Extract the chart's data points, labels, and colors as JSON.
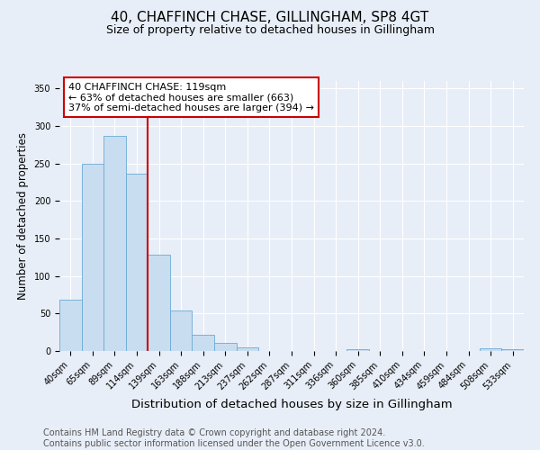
{
  "title": "40, CHAFFINCH CHASE, GILLINGHAM, SP8 4GT",
  "subtitle": "Size of property relative to detached houses in Gillingham",
  "xlabel": "Distribution of detached houses by size in Gillingham",
  "ylabel": "Number of detached properties",
  "bar_labels": [
    "40sqm",
    "65sqm",
    "89sqm",
    "114sqm",
    "139sqm",
    "163sqm",
    "188sqm",
    "213sqm",
    "237sqm",
    "262sqm",
    "287sqm",
    "311sqm",
    "336sqm",
    "360sqm",
    "385sqm",
    "410sqm",
    "434sqm",
    "459sqm",
    "484sqm",
    "508sqm",
    "533sqm"
  ],
  "bar_values": [
    68,
    250,
    287,
    236,
    128,
    54,
    22,
    11,
    5,
    0,
    0,
    0,
    0,
    2,
    0,
    0,
    0,
    0,
    0,
    4,
    2
  ],
  "bar_color": "#c9ddf0",
  "bar_edge_color": "#6aaad4",
  "vline_x": 3.5,
  "vline_color": "#cc0000",
  "annotation_text": "40 CHAFFINCH CHASE: 119sqm\n← 63% of detached houses are smaller (663)\n37% of semi-detached houses are larger (394) →",
  "annotation_box_facecolor": "#ffffff",
  "annotation_box_edgecolor": "#cc0000",
  "ylim": [
    0,
    360
  ],
  "yticks": [
    0,
    50,
    100,
    150,
    200,
    250,
    300,
    350
  ],
  "background_color": "#e8eef7",
  "title_fontsize": 11,
  "subtitle_fontsize": 9,
  "xlabel_fontsize": 9.5,
  "ylabel_fontsize": 8.5,
  "tick_fontsize": 7,
  "annotation_fontsize": 8,
  "footer_fontsize": 7,
  "footer_line1": "Contains HM Land Registry data © Crown copyright and database right 2024.",
  "footer_line2": "Contains public sector information licensed under the Open Government Licence v3.0."
}
